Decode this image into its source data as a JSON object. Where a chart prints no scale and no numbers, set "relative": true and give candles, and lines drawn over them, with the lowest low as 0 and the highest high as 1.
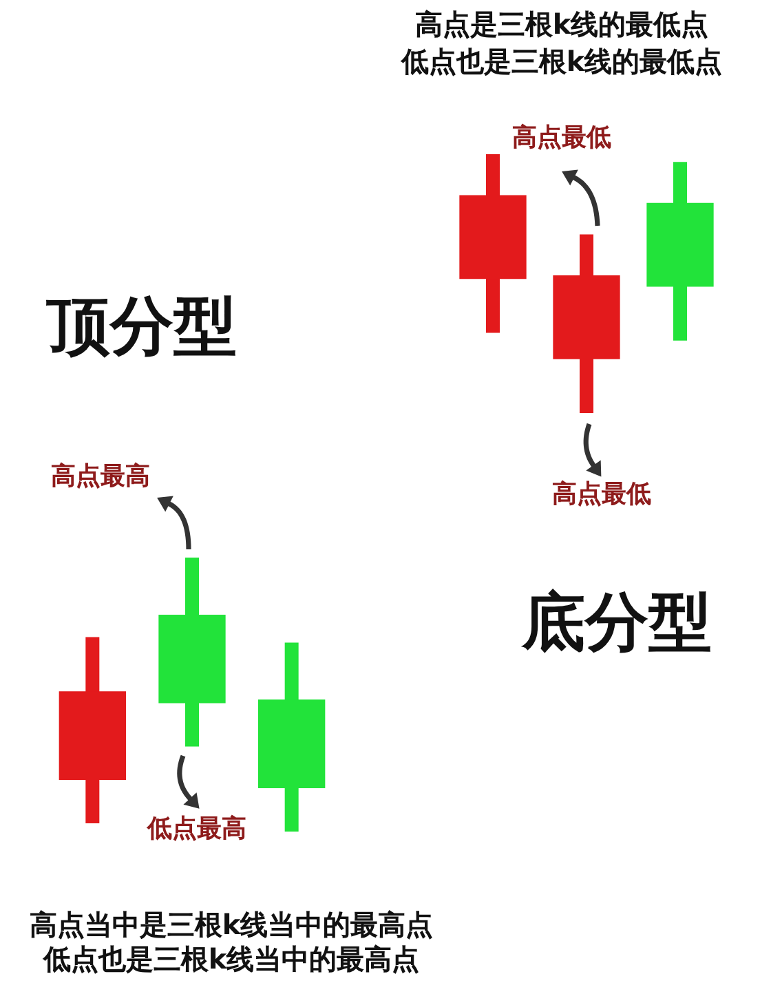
{
  "chart_data": [
    {
      "type": "candlestick",
      "title": "高点是三根k线的最低点",
      "subtitle": "低点也是三根k线的最低点",
      "categories": [
        null,
        null,
        null
      ],
      "relative": true,
      "ohlc": [
        [
          0.52,
          1,
          0.31,
          0.84
        ],
        [
          0.21,
          0.69,
          0,
          0.53
        ],
        [
          0.81,
          0.97,
          0.28,
          0.49
        ]
      ],
      "colors": [
        "#e31a1c",
        "#e31a1c",
        "#22e33a"
      ],
      "annotations": [
        "高点最低",
        "高点最低",
        "底分型"
      ]
    },
    {
      "type": "candlestick",
      "categories": [
        null,
        null,
        null
      ],
      "relative": true,
      "ohlc": [
        [
          0.19,
          0.71,
          0.03,
          0.51
        ],
        [
          0.79,
          1,
          0.31,
          0.47
        ],
        [
          0.48,
          0.69,
          0,
          0.16
        ]
      ],
      "colors": [
        "#e31a1c",
        "#22e33a",
        "#22e33a"
      ],
      "annotations": [
        "顶分型",
        "高点最高",
        "低点最高",
        "高点当中是三根k线当中的最高点",
        "低点也是三根k线当中的最高点"
      ]
    }
  ]
}
